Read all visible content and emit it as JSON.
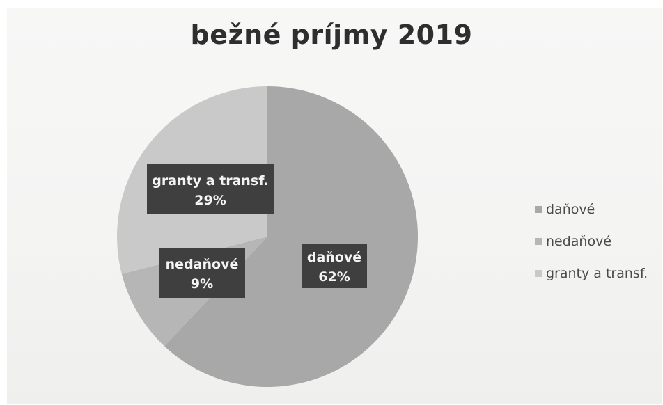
{
  "chart_data": {
    "type": "pie",
    "title": "bežné príjmy 2019",
    "categories": [
      "daňové",
      "nedaňové",
      "granty a transf."
    ],
    "values": [
      62,
      9,
      29
    ],
    "unit": "%",
    "data_labels": [
      {
        "name": "daňové",
        "value": "62%"
      },
      {
        "name": "nedaňové",
        "value": "9%"
      },
      {
        "name": "granty a transf.",
        "value": "29%"
      }
    ],
    "colors": [
      "#a8a8a8",
      "#b6b6b6",
      "#c9c9c9"
    ],
    "legend": {
      "placement": "right",
      "entries": [
        "daňové",
        "nedaňové",
        "granty a transf."
      ]
    },
    "start_angle_deg": 0,
    "direction": "clockwise"
  }
}
